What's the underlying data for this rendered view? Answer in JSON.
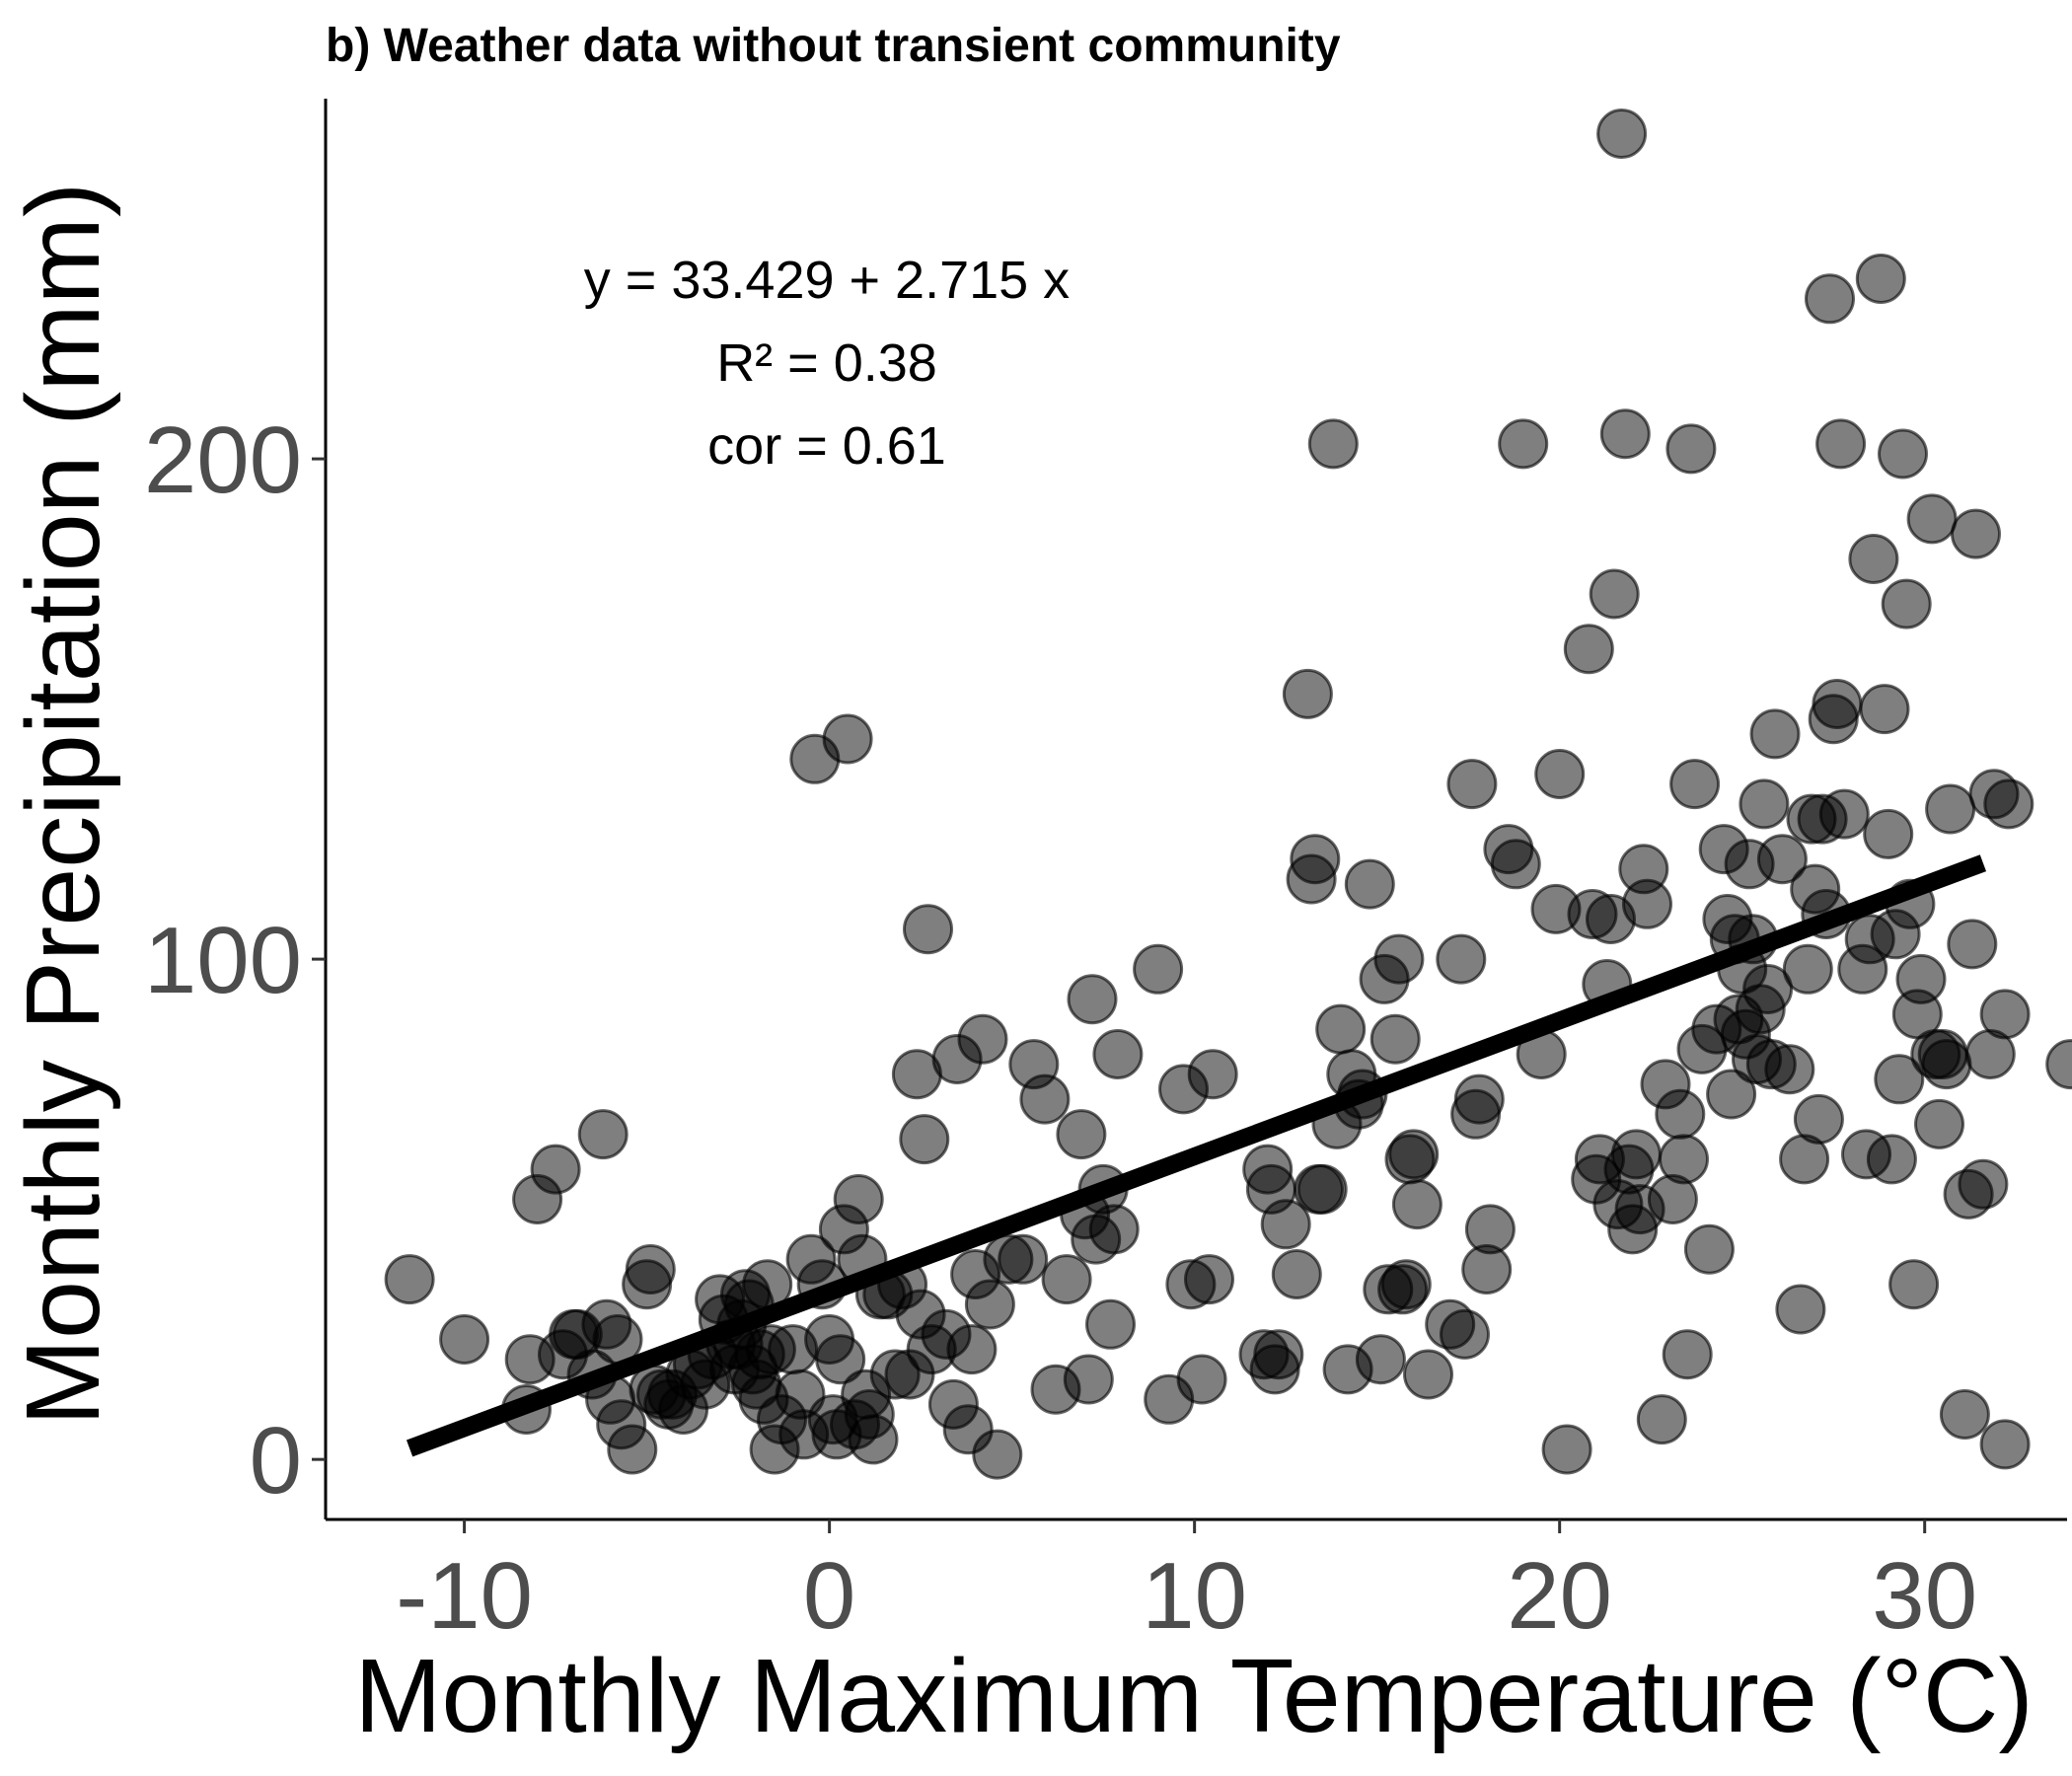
{
  "chart_data": {
    "type": "scatter",
    "title": "b) Weather data without transient community",
    "xlabel": "Monthly Maximum Temperature (°C)",
    "ylabel": "Monthly Precipitation (mm)",
    "xlim": [
      -13.8,
      33.9
    ],
    "ylim": [
      -12,
      272
    ],
    "xticks": [
      -10,
      0,
      10,
      20,
      30
    ],
    "yticks": [
      0,
      100,
      200
    ],
    "grid": false,
    "legend": "none",
    "point_color": "#000000",
    "annotations": [
      "y = 33.429 + 2.715 x",
      "R² = 0.38",
      "cor = 0.61"
    ],
    "fit_line": {
      "intercept": 33.429,
      "slope": 2.715,
      "x_range": [
        -11.5,
        31.6
      ]
    },
    "points": [
      [
        -11.5,
        36
      ],
      [
        -10,
        24
      ],
      [
        -8.3,
        10
      ],
      [
        -8.2,
        20
      ],
      [
        -8,
        52
      ],
      [
        -7.5,
        58
      ],
      [
        -7.3,
        21
      ],
      [
        -7,
        25
      ],
      [
        -6.9,
        25
      ],
      [
        -6.5,
        17
      ],
      [
        -6.2,
        65
      ],
      [
        -6.1,
        27
      ],
      [
        -6,
        12
      ],
      [
        -5.8,
        24
      ],
      [
        -5.7,
        7
      ],
      [
        -5.4,
        2
      ],
      [
        -5,
        35
      ],
      [
        -4.9,
        38
      ],
      [
        -4.8,
        14
      ],
      [
        -4.6,
        13
      ],
      [
        -4.4,
        11
      ],
      [
        -4.3,
        13
      ],
      [
        -4,
        10
      ],
      [
        -3.8,
        17
      ],
      [
        -3.6,
        19
      ],
      [
        -3.4,
        15
      ],
      [
        -3.2,
        21
      ],
      [
        -3,
        32
      ],
      [
        -2.9,
        28
      ],
      [
        -2.7,
        23
      ],
      [
        -2.6,
        18
      ],
      [
        -2.5,
        23
      ],
      [
        -2.4,
        27
      ],
      [
        -2.3,
        33
      ],
      [
        -2.2,
        31
      ],
      [
        -2.1,
        18
      ],
      [
        -2,
        15
      ],
      [
        -1.9,
        21
      ],
      [
        -1.8,
        12
      ],
      [
        -1.7,
        35
      ],
      [
        -1.6,
        22
      ],
      [
        -1.5,
        2
      ],
      [
        -1.3,
        8
      ],
      [
        -1,
        22
      ],
      [
        -0.8,
        13
      ],
      [
        -0.7,
        5
      ],
      [
        -0.5,
        40
      ],
      [
        -0.4,
        140
      ],
      [
        -0.2,
        35
      ],
      [
        0,
        24
      ],
      [
        0.1,
        8
      ],
      [
        0.2,
        5
      ],
      [
        0.3,
        20
      ],
      [
        0.4,
        46
      ],
      [
        0.5,
        144
      ],
      [
        0.7,
        7
      ],
      [
        0.8,
        52
      ],
      [
        0.9,
        40
      ],
      [
        1,
        13
      ],
      [
        1.1,
        9
      ],
      [
        1.2,
        4
      ],
      [
        1.4,
        33
      ],
      [
        1.6,
        33
      ],
      [
        1.8,
        17
      ],
      [
        2,
        35
      ],
      [
        2.2,
        17
      ],
      [
        2.4,
        77
      ],
      [
        2.5,
        29
      ],
      [
        2.6,
        64
      ],
      [
        2.7,
        106
      ],
      [
        2.8,
        22
      ],
      [
        3.2,
        25
      ],
      [
        3.4,
        11
      ],
      [
        3.5,
        80
      ],
      [
        3.8,
        6
      ],
      [
        3.9,
        22
      ],
      [
        4,
        37
      ],
      [
        4.2,
        84
      ],
      [
        4.4,
        31
      ],
      [
        4.6,
        1
      ],
      [
        4.9,
        40
      ],
      [
        5.3,
        40
      ],
      [
        5.6,
        79
      ],
      [
        5.9,
        72
      ],
      [
        6.2,
        14
      ],
      [
        6.5,
        36
      ],
      [
        6.9,
        65
      ],
      [
        7,
        49
      ],
      [
        7.1,
        16
      ],
      [
        7.2,
        92
      ],
      [
        7.3,
        44
      ],
      [
        7.5,
        54
      ],
      [
        7.7,
        27
      ],
      [
        7.8,
        46
      ],
      [
        7.9,
        81
      ],
      [
        9,
        98
      ],
      [
        9.3,
        12
      ],
      [
        9.7,
        74
      ],
      [
        9.9,
        35
      ],
      [
        10.2,
        16
      ],
      [
        10.4,
        36
      ],
      [
        10.5,
        77
      ],
      [
        11.9,
        21
      ],
      [
        12,
        58
      ],
      [
        12.1,
        54
      ],
      [
        12.2,
        18
      ],
      [
        12.3,
        21
      ],
      [
        12.5,
        47
      ],
      [
        12.8,
        37
      ],
      [
        13.1,
        153
      ],
      [
        13.2,
        116
      ],
      [
        13.3,
        120
      ],
      [
        13.4,
        54
      ],
      [
        13.5,
        54
      ],
      [
        13.8,
        203
      ],
      [
        13.9,
        67
      ],
      [
        14,
        86
      ],
      [
        14.2,
        18
      ],
      [
        14.3,
        77
      ],
      [
        14.5,
        71
      ],
      [
        14.6,
        73
      ],
      [
        14.8,
        115
      ],
      [
        15.1,
        20
      ],
      [
        15.2,
        96
      ],
      [
        15.3,
        34
      ],
      [
        15.5,
        84
      ],
      [
        15.6,
        100
      ],
      [
        15.7,
        34
      ],
      [
        15.8,
        35
      ],
      [
        15.9,
        60
      ],
      [
        16,
        61
      ],
      [
        16.1,
        51
      ],
      [
        16.4,
        17
      ],
      [
        17,
        27
      ],
      [
        17.3,
        100
      ],
      [
        17.4,
        25
      ],
      [
        17.6,
        135
      ],
      [
        17.7,
        69
      ],
      [
        17.8,
        72
      ],
      [
        18,
        38
      ],
      [
        18.1,
        46
      ],
      [
        18.6,
        122
      ],
      [
        18.8,
        119
      ],
      [
        19,
        203
      ],
      [
        19.5,
        81
      ],
      [
        19.9,
        110
      ],
      [
        20,
        137
      ],
      [
        20.2,
        2
      ],
      [
        20.8,
        162
      ],
      [
        20.9,
        109
      ],
      [
        21,
        56
      ],
      [
        21.1,
        60
      ],
      [
        21.3,
        95
      ],
      [
        21.4,
        108
      ],
      [
        21.5,
        173
      ],
      [
        21.6,
        51
      ],
      [
        21.7,
        265
      ],
      [
        21.8,
        205
      ],
      [
        21.9,
        58
      ],
      [
        22,
        46
      ],
      [
        22.1,
        61
      ],
      [
        22.2,
        50
      ],
      [
        22.3,
        118
      ],
      [
        22.4,
        111
      ],
      [
        22.8,
        8
      ],
      [
        22.9,
        75
      ],
      [
        23.1,
        52
      ],
      [
        23.3,
        69
      ],
      [
        23.4,
        60
      ],
      [
        23.5,
        21
      ],
      [
        23.6,
        202
      ],
      [
        23.7,
        135
      ],
      [
        23.9,
        82
      ],
      [
        24.1,
        42
      ],
      [
        24.3,
        86
      ],
      [
        24.5,
        122
      ],
      [
        24.6,
        108
      ],
      [
        24.7,
        73
      ],
      [
        24.8,
        104
      ],
      [
        24.9,
        88
      ],
      [
        25,
        98
      ],
      [
        25.1,
        85
      ],
      [
        25.2,
        119
      ],
      [
        25.3,
        104
      ],
      [
        25.4,
        80
      ],
      [
        25.5,
        90
      ],
      [
        25.6,
        131
      ],
      [
        25.7,
        94
      ],
      [
        25.8,
        79
      ],
      [
        25.9,
        145
      ],
      [
        26.1,
        120
      ],
      [
        26.3,
        78
      ],
      [
        26.6,
        30
      ],
      [
        26.7,
        60
      ],
      [
        26.8,
        98
      ],
      [
        26.9,
        128
      ],
      [
        27,
        114
      ],
      [
        27.1,
        68
      ],
      [
        27.2,
        128
      ],
      [
        27.3,
        109
      ],
      [
        27.4,
        232
      ],
      [
        27.5,
        148
      ],
      [
        27.6,
        151
      ],
      [
        27.7,
        203
      ],
      [
        27.8,
        129
      ],
      [
        28.3,
        98
      ],
      [
        28.4,
        61
      ],
      [
        28.5,
        104
      ],
      [
        28.6,
        180
      ],
      [
        28.8,
        236
      ],
      [
        28.9,
        150
      ],
      [
        29,
        125
      ],
      [
        29.1,
        60
      ],
      [
        29.2,
        105
      ],
      [
        29.3,
        76
      ],
      [
        29.4,
        201
      ],
      [
        29.5,
        171
      ],
      [
        29.6,
        111
      ],
      [
        29.7,
        35
      ],
      [
        29.8,
        89
      ],
      [
        29.9,
        96
      ],
      [
        30.2,
        188
      ],
      [
        30.3,
        81
      ],
      [
        30.4,
        67
      ],
      [
        30.5,
        81
      ],
      [
        30.6,
        79
      ],
      [
        30.7,
        130
      ],
      [
        31.1,
        9
      ],
      [
        31.2,
        53
      ],
      [
        31.3,
        103
      ],
      [
        31.4,
        185
      ],
      [
        31.6,
        55
      ],
      [
        31.8,
        81
      ],
      [
        31.9,
        133
      ],
      [
        32.2,
        89
      ],
      [
        32.3,
        131
      ],
      [
        32.2,
        3
      ],
      [
        34,
        79
      ]
    ]
  }
}
